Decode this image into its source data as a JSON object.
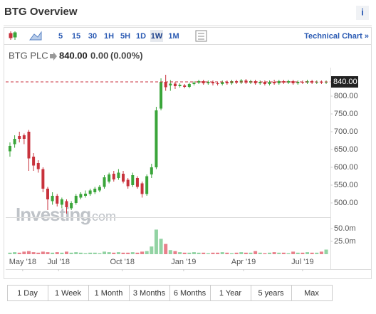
{
  "header": {
    "title": "BTG Overview",
    "info": "i"
  },
  "toolbar": {
    "intervals": [
      "5",
      "15",
      "30",
      "1H",
      "5H",
      "1D",
      "1W",
      "1M"
    ],
    "active": "1W",
    "technical": "Technical Chart »"
  },
  "quote": {
    "name": "BTG PLC",
    "price": "840.00",
    "change": "0.00",
    "change_pct": "(0.00%)"
  },
  "watermark": {
    "brand": "Investing",
    "suffix": ".com"
  },
  "ranges": [
    "1 Day",
    "1 Week",
    "1 Month",
    "3 Months",
    "6 Months",
    "1 Year",
    "5 years",
    "Max"
  ],
  "chart_data": {
    "type": "candlestick",
    "x": [
      0,
      1,
      2,
      3,
      4,
      5,
      6,
      7,
      8,
      9,
      10,
      11,
      12,
      13,
      14,
      15,
      16,
      17,
      18,
      19,
      20,
      21,
      22,
      23,
      24,
      25,
      26,
      27,
      28,
      29,
      30,
      31,
      32,
      33,
      34,
      35,
      36,
      37,
      38,
      39,
      40,
      41,
      42,
      43,
      44,
      45,
      46,
      47,
      48,
      49,
      50,
      51,
      52,
      53,
      54,
      55,
      56,
      57,
      58,
      59,
      60,
      61,
      62,
      63,
      64,
      65,
      66,
      67
    ],
    "open": [
      645,
      665,
      688,
      690,
      700,
      630,
      612,
      595,
      540,
      505,
      520,
      495,
      505,
      485,
      500,
      515,
      520,
      525,
      530,
      535,
      545,
      560,
      582,
      570,
      582,
      565,
      550,
      570,
      555,
      525,
      580,
      600,
      765,
      840,
      830,
      835,
      828,
      830,
      826,
      834,
      838,
      842,
      836,
      840,
      836,
      834,
      840,
      836,
      842,
      838,
      844,
      838,
      842,
      836,
      840,
      834,
      840,
      836,
      842,
      838,
      842,
      836,
      840,
      838,
      842,
      838,
      840,
      838
    ],
    "high": [
      670,
      690,
      700,
      695,
      705,
      640,
      620,
      600,
      545,
      530,
      525,
      515,
      510,
      505,
      525,
      530,
      535,
      540,
      545,
      550,
      578,
      585,
      590,
      595,
      590,
      570,
      585,
      575,
      560,
      580,
      610,
      770,
      850,
      860,
      845,
      840,
      836,
      834,
      838,
      842,
      846,
      846,
      844,
      844,
      840,
      844,
      844,
      846,
      846,
      848,
      848,
      846,
      846,
      844,
      844,
      844,
      846,
      846,
      846,
      846,
      846,
      844,
      844,
      846,
      846,
      844,
      844,
      844
    ],
    "low": [
      630,
      655,
      670,
      665,
      590,
      590,
      585,
      530,
      480,
      495,
      490,
      485,
      470,
      480,
      495,
      510,
      515,
      520,
      525,
      530,
      540,
      555,
      560,
      565,
      555,
      540,
      545,
      540,
      515,
      520,
      570,
      595,
      760,
      815,
      815,
      820,
      824,
      822,
      822,
      830,
      834,
      832,
      832,
      830,
      830,
      830,
      832,
      832,
      834,
      834,
      834,
      834,
      832,
      832,
      830,
      830,
      832,
      832,
      834,
      834,
      832,
      832,
      834,
      834,
      834,
      834,
      834,
      834
    ],
    "close": [
      660,
      680,
      680,
      680,
      625,
      605,
      595,
      540,
      510,
      520,
      498,
      510,
      488,
      500,
      520,
      525,
      526,
      535,
      540,
      545,
      572,
      580,
      566,
      585,
      560,
      547,
      578,
      545,
      525,
      575,
      600,
      760,
      840,
      825,
      835,
      828,
      832,
      826,
      834,
      838,
      842,
      836,
      840,
      836,
      834,
      840,
      836,
      842,
      838,
      844,
      838,
      842,
      836,
      840,
      834,
      840,
      836,
      842,
      838,
      842,
      836,
      840,
      838,
      842,
      838,
      840,
      838,
      840
    ],
    "volume": [
      3,
      4,
      3,
      5,
      6,
      4,
      3,
      5,
      4,
      3,
      4,
      3,
      5,
      3,
      4,
      3,
      2,
      3,
      3,
      2,
      5,
      4,
      3,
      4,
      3,
      3,
      4,
      3,
      5,
      6,
      15,
      48,
      30,
      20,
      8,
      6,
      4,
      3,
      3,
      4,
      3,
      3,
      2,
      3,
      3,
      4,
      3,
      2,
      3,
      4,
      3,
      3,
      6,
      3,
      2,
      3,
      4,
      3,
      3,
      2,
      5,
      3,
      3,
      4,
      3,
      3,
      5,
      9
    ],
    "up_color": "#3aa53a",
    "down_color": "#c8323c",
    "volume_up_color": "#92d3a3",
    "volume_down_color": "#e8808b",
    "xlim": [
      -0.9,
      67.9
    ],
    "xticks": [
      {
        "value": 2.7,
        "label": "May '18"
      },
      {
        "value": 10.3,
        "label": "Jul '18"
      },
      {
        "value": 23.8,
        "label": "Oct '18"
      },
      {
        "value": 36.8,
        "label": "Jan '19"
      },
      {
        "value": 49.5,
        "label": "Apr '19"
      },
      {
        "value": 62,
        "label": "Jul '19"
      }
    ],
    "ylim": [
      475,
      865
    ],
    "yticks": [
      {
        "value": 500,
        "label": "500.00"
      },
      {
        "value": 550,
        "label": "550.00"
      },
      {
        "value": 600,
        "label": "600.00"
      },
      {
        "value": 650,
        "label": "650.00"
      },
      {
        "value": 700,
        "label": "700.00"
      },
      {
        "value": 750,
        "label": "750.00"
      },
      {
        "value": 800,
        "label": "800.00"
      }
    ],
    "y2lim": [
      0,
      62.5
    ],
    "y2ticks": [
      {
        "value": 25,
        "label": "25.0m"
      },
      {
        "value": 50,
        "label": "50.0m"
      }
    ],
    "last_price": {
      "value": 840,
      "label": "840.00"
    }
  }
}
